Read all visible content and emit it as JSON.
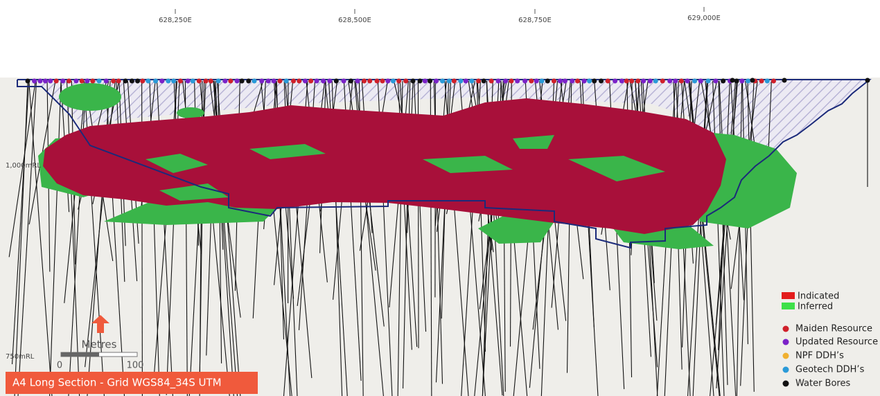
{
  "eastings": [
    "628,250E",
    "628,500E",
    "628,750E",
    "629,000E"
  ],
  "elevations": [
    "1,000mRL",
    "750mRL"
  ],
  "legend": {
    "resource": [
      {
        "label": "Indicated"
      },
      {
        "label": "Inferred"
      }
    ],
    "drillholes": [
      {
        "label": "Maiden Resource"
      },
      {
        "label": "Updated Resource"
      },
      {
        "label": "NPF DDH’s"
      },
      {
        "label": "Geotech DDH’s"
      },
      {
        "label": "Water Bores"
      }
    ]
  },
  "scale": {
    "title": "Metres",
    "labels": [
      "0",
      "100"
    ]
  },
  "caption": "A4 Long  Section - Grid WGS84_34S UTM"
}
